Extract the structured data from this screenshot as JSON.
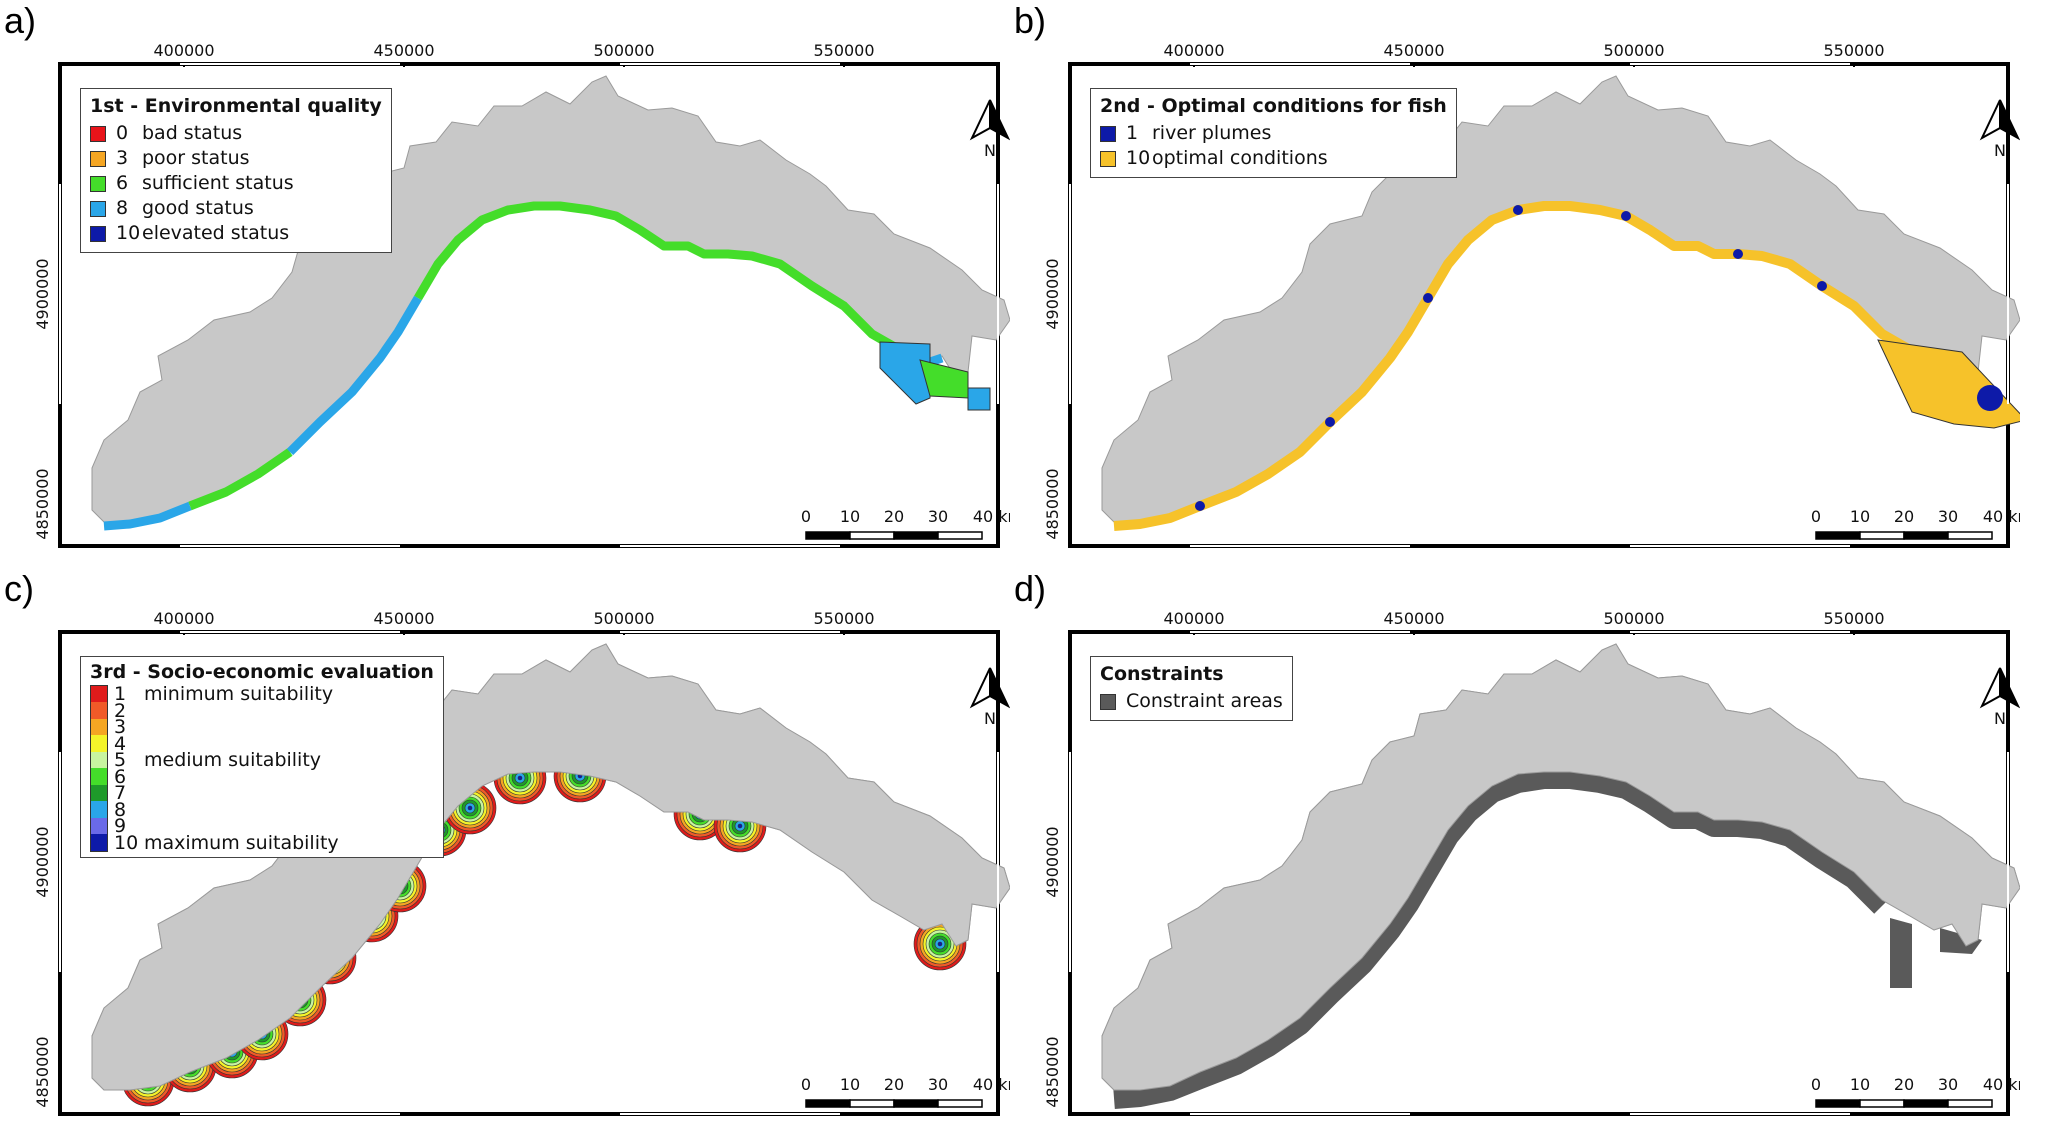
{
  "panels": [
    {
      "label": "a)",
      "x_ticks": [
        "400000",
        "450000",
        "500000",
        "550000"
      ],
      "y_ticks": [
        "4900000",
        "4850000"
      ],
      "legend_title": "1st - Environmental quality",
      "legend_items": [
        {
          "value": "0",
          "text": "bad status",
          "color": "#e8141a"
        },
        {
          "value": "3",
          "text": "poor status",
          "color": "#f5a623"
        },
        {
          "value": "6",
          "text": "sufficient status",
          "color": "#44dd2a"
        },
        {
          "value": "8",
          "text": "good status",
          "color": "#2aa6e8"
        },
        {
          "value": "10",
          "text": "elevated status",
          "color": "#0d1aa8"
        }
      ],
      "scale_labels": [
        "0",
        "10",
        "20",
        "30",
        "40 km"
      ],
      "north": "N"
    },
    {
      "label": "b)",
      "x_ticks": [
        "400000",
        "450000",
        "500000",
        "550000"
      ],
      "y_ticks": [
        "4900000",
        "4850000"
      ],
      "legend_title": "2nd - Optimal conditions for fish",
      "legend_items": [
        {
          "value": "1",
          "text": "river plumes",
          "color": "#0d1aa8"
        },
        {
          "value": "10",
          "text": "optimal conditions",
          "color": "#f6c22a"
        }
      ],
      "scale_labels": [
        "0",
        "10",
        "20",
        "30",
        "40 km"
      ],
      "north": "N"
    },
    {
      "label": "c)",
      "x_ticks": [
        "400000",
        "450000",
        "500000",
        "550000"
      ],
      "y_ticks": [
        "4900000",
        "4850000"
      ],
      "legend_title": "3rd - Socio-economic evaluation",
      "legend_items": [
        {
          "value": "1",
          "text": "minimum suitability",
          "color": "#e01b1b"
        },
        {
          "value": "2",
          "text": "",
          "color": "#f05a28"
        },
        {
          "value": "3",
          "text": "",
          "color": "#f5a623"
        },
        {
          "value": "4",
          "text": "",
          "color": "#f4f42a"
        },
        {
          "value": "5",
          "text": "medium suitability",
          "color": "#c8f5a0"
        },
        {
          "value": "6",
          "text": "",
          "color": "#44dd2a"
        },
        {
          "value": "7",
          "text": "",
          "color": "#1e9a2a"
        },
        {
          "value": "8",
          "text": "",
          "color": "#2aa6e8"
        },
        {
          "value": "9",
          "text": "",
          "color": "#6a6ae8"
        },
        {
          "value": "10",
          "text": "maximum suitability",
          "color": "#0d1aa8"
        }
      ],
      "scale_labels": [
        "0",
        "10",
        "20",
        "30",
        "40 km"
      ],
      "north": "N"
    },
    {
      "label": "d)",
      "x_ticks": [
        "400000",
        "450000",
        "500000",
        "550000"
      ],
      "y_ticks": [
        "4900000",
        "4850000"
      ],
      "legend_title": "Constraints",
      "legend_items": [
        {
          "value": "",
          "text": "Constraint areas",
          "color": "#5a5a5a"
        }
      ],
      "scale_labels": [
        "0",
        "10",
        "20",
        "30",
        "40 km"
      ],
      "north": "N"
    }
  ],
  "colors": {
    "land": "#c8c8c8",
    "frame": "#000000"
  }
}
